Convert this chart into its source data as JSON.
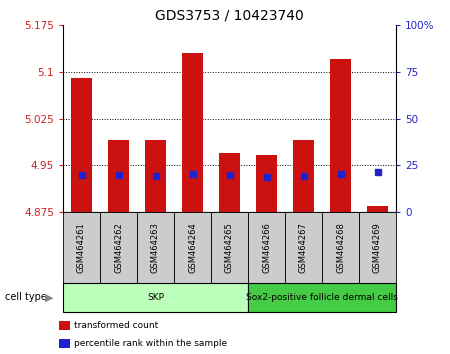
{
  "title": "GDS3753 / 10423740",
  "samples": [
    "GSM464261",
    "GSM464262",
    "GSM464263",
    "GSM464264",
    "GSM464265",
    "GSM464266",
    "GSM464267",
    "GSM464268",
    "GSM464269"
  ],
  "transformed_counts": [
    5.09,
    4.99,
    4.99,
    5.13,
    4.97,
    4.967,
    4.99,
    5.12,
    4.885
  ],
  "percentile_values": [
    4.935,
    4.935,
    4.933,
    4.936,
    4.935,
    4.932,
    4.933,
    4.936,
    4.94
  ],
  "ymin": 4.875,
  "ymax": 5.175,
  "yticks": [
    4.875,
    4.95,
    5.025,
    5.1,
    5.175
  ],
  "ytick_labels": [
    "4.875",
    "4.95",
    "5.025",
    "5.1",
    "5.175"
  ],
  "right_yticks": [
    0,
    25,
    50,
    75,
    100
  ],
  "right_ytick_labels": [
    "0",
    "25",
    "50",
    "75",
    "100%"
  ],
  "bar_color": "#cc1111",
  "percentile_color": "#2222cc",
  "bar_bottom": 4.875,
  "cell_type_groups": [
    {
      "label": "SKP",
      "start": 0,
      "end": 4,
      "color": "#bbffbb"
    },
    {
      "label": "Sox2-positive follicle dermal cells",
      "start": 5,
      "end": 8,
      "color": "#44cc44"
    }
  ],
  "cell_type_label": "cell type",
  "legend_items": [
    {
      "label": "transformed count",
      "color": "#cc1111"
    },
    {
      "label": "percentile rank within the sample",
      "color": "#2222cc"
    }
  ],
  "background_color": "#ffffff",
  "title_fontsize": 10,
  "tick_label_color_left": "#cc2222",
  "tick_label_color_right": "#2222cc",
  "sample_bg_color": "#cccccc",
  "bar_width": 0.55
}
